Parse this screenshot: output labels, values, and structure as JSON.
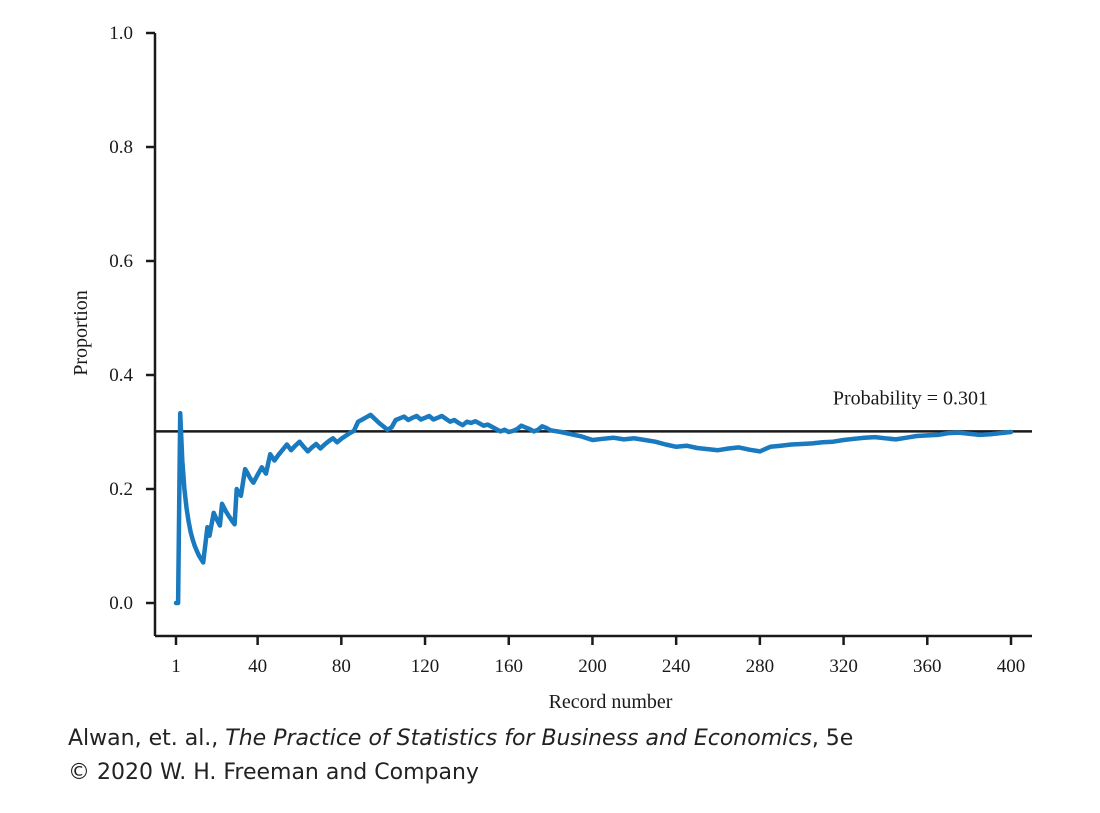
{
  "chart_data": {
    "type": "line",
    "xlabel": "Record number",
    "ylabel": "Proportion",
    "xlim": [
      1,
      400
    ],
    "ylim": [
      0,
      1
    ],
    "x_ticks": [
      1,
      40,
      80,
      120,
      160,
      200,
      240,
      280,
      320,
      360,
      400
    ],
    "y_ticks": [
      0.0,
      0.2,
      0.4,
      0.6,
      0.8,
      1.0
    ],
    "y_tick_labels": [
      "0.0",
      "0.2",
      "0.4",
      "0.6",
      "0.8",
      "1.0"
    ],
    "grid": false,
    "series": [
      {
        "color": "#1a7abf",
        "x": [
          1,
          2,
          3,
          4,
          5,
          6,
          7,
          8,
          9,
          10,
          11,
          12,
          13,
          14,
          16,
          17,
          19,
          20,
          22,
          23,
          25,
          26,
          28,
          29,
          30,
          32,
          34,
          35,
          36,
          37,
          38,
          40,
          42,
          44,
          46,
          48,
          50,
          52,
          54,
          56,
          58,
          60,
          62,
          64,
          66,
          68,
          70,
          72,
          74,
          76,
          78,
          80,
          82,
          84,
          86,
          88,
          90,
          92,
          94,
          96,
          98,
          100,
          102,
          104,
          106,
          108,
          110,
          112,
          114,
          116,
          118,
          120,
          122,
          124,
          126,
          128,
          130,
          132,
          134,
          136,
          138,
          140,
          142,
          144,
          146,
          148,
          150,
          152,
          154,
          156,
          158,
          160,
          162,
          164,
          166,
          168,
          170,
          172,
          174,
          176,
          178,
          180,
          185,
          190,
          195,
          200,
          205,
          210,
          215,
          220,
          225,
          230,
          235,
          240,
          245,
          250,
          255,
          260,
          265,
          270,
          275,
          280,
          285,
          290,
          295,
          300,
          305,
          310,
          315,
          320,
          325,
          330,
          335,
          340,
          345,
          350,
          355,
          360,
          365,
          370,
          375,
          380,
          385,
          390,
          395,
          400
        ],
        "y": [
          0.0,
          0.0,
          0.333,
          0.25,
          0.2,
          0.167,
          0.143,
          0.125,
          0.111,
          0.1,
          0.091,
          0.083,
          0.077,
          0.071,
          0.133,
          0.118,
          0.158,
          0.15,
          0.136,
          0.174,
          0.16,
          0.154,
          0.143,
          0.138,
          0.2,
          0.188,
          0.235,
          0.229,
          0.222,
          0.216,
          0.211,
          0.225,
          0.238,
          0.227,
          0.261,
          0.25,
          0.26,
          0.269,
          0.278,
          0.268,
          0.276,
          0.283,
          0.274,
          0.266,
          0.273,
          0.279,
          0.271,
          0.278,
          0.284,
          0.289,
          0.282,
          0.288,
          0.293,
          0.298,
          0.302,
          0.318,
          0.322,
          0.326,
          0.33,
          0.323,
          0.316,
          0.31,
          0.304,
          0.308,
          0.321,
          0.324,
          0.327,
          0.321,
          0.325,
          0.328,
          0.322,
          0.325,
          0.328,
          0.322,
          0.325,
          0.328,
          0.323,
          0.318,
          0.321,
          0.316,
          0.312,
          0.318,
          0.316,
          0.319,
          0.315,
          0.311,
          0.313,
          0.309,
          0.305,
          0.301,
          0.304,
          0.3,
          0.302,
          0.305,
          0.311,
          0.308,
          0.305,
          0.301,
          0.304,
          0.31,
          0.307,
          0.303,
          0.3,
          0.296,
          0.292,
          0.286,
          0.288,
          0.29,
          0.287,
          0.289,
          0.286,
          0.283,
          0.278,
          0.274,
          0.276,
          0.272,
          0.27,
          0.268,
          0.271,
          0.273,
          0.269,
          0.266,
          0.274,
          0.276,
          0.278,
          0.279,
          0.28,
          0.282,
          0.283,
          0.286,
          0.288,
          0.29,
          0.291,
          0.289,
          0.287,
          0.29,
          0.293,
          0.294,
          0.295,
          0.298,
          0.299,
          0.297,
          0.295,
          0.296,
          0.298,
          0.3
        ]
      }
    ],
    "reference_line": {
      "y": 0.301,
      "label": "Probability = 0.301",
      "color": "#1a1a1a"
    }
  },
  "credit": {
    "authors": "Alwan, et. al., ",
    "book_title": "The Practice of Statistics for Business and Economics",
    "edition": ", 5e",
    "copyright": "© 2020 W. H. Freeman and Company"
  }
}
